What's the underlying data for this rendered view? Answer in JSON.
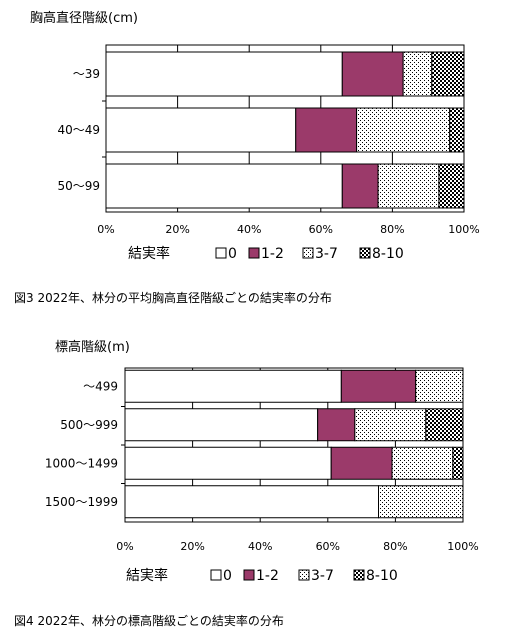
{
  "colors": {
    "0": "#ffffff",
    "1-2": "#9b3a6a",
    "3-7": "#ffffff",
    "8-10": "#333333"
  },
  "chart_data": [
    {
      "type": "bar",
      "orientation": "horizontal",
      "stacked": true,
      "percent": true,
      "title": "胸高直径階級(cm)",
      "categories": [
        "～39",
        "40～49",
        "50～99"
      ],
      "series": [
        {
          "name": "0",
          "values": [
            66,
            53,
            66
          ]
        },
        {
          "name": "1-2",
          "values": [
            17,
            17,
            10
          ]
        },
        {
          "name": "3-7",
          "values": [
            8,
            26,
            17
          ]
        },
        {
          "name": "8-10",
          "values": [
            9,
            4,
            7
          ]
        }
      ],
      "xlim": [
        0,
        100
      ],
      "xticks": [
        "0%",
        "20%",
        "40%",
        "60%",
        "80%",
        "100%"
      ],
      "xlabel": "",
      "legend_title": "結実率",
      "legend_position": "bottom",
      "caption": "図3  2022年、林分の平均胸高直径階級ごとの結実率の分布"
    },
    {
      "type": "bar",
      "orientation": "horizontal",
      "stacked": true,
      "percent": true,
      "title": "標高階級(m)",
      "categories": [
        "～499",
        "500～999",
        "1000～1499",
        "1500～1999"
      ],
      "series": [
        {
          "name": "0",
          "values": [
            64,
            57,
            61,
            75
          ]
        },
        {
          "name": "1-2",
          "values": [
            22,
            11,
            18,
            0
          ]
        },
        {
          "name": "3-7",
          "values": [
            14,
            21,
            18,
            25
          ]
        },
        {
          "name": "8-10",
          "values": [
            0,
            11,
            3,
            0
          ]
        }
      ],
      "xlim": [
        0,
        100
      ],
      "xticks": [
        "0%",
        "20%",
        "40%",
        "60%",
        "80%",
        "100%"
      ],
      "xlabel": "",
      "legend_title": "結実率",
      "legend_position": "bottom",
      "caption": "図4  2022年、林分の標高階級ごとの結実率の分布"
    }
  ]
}
